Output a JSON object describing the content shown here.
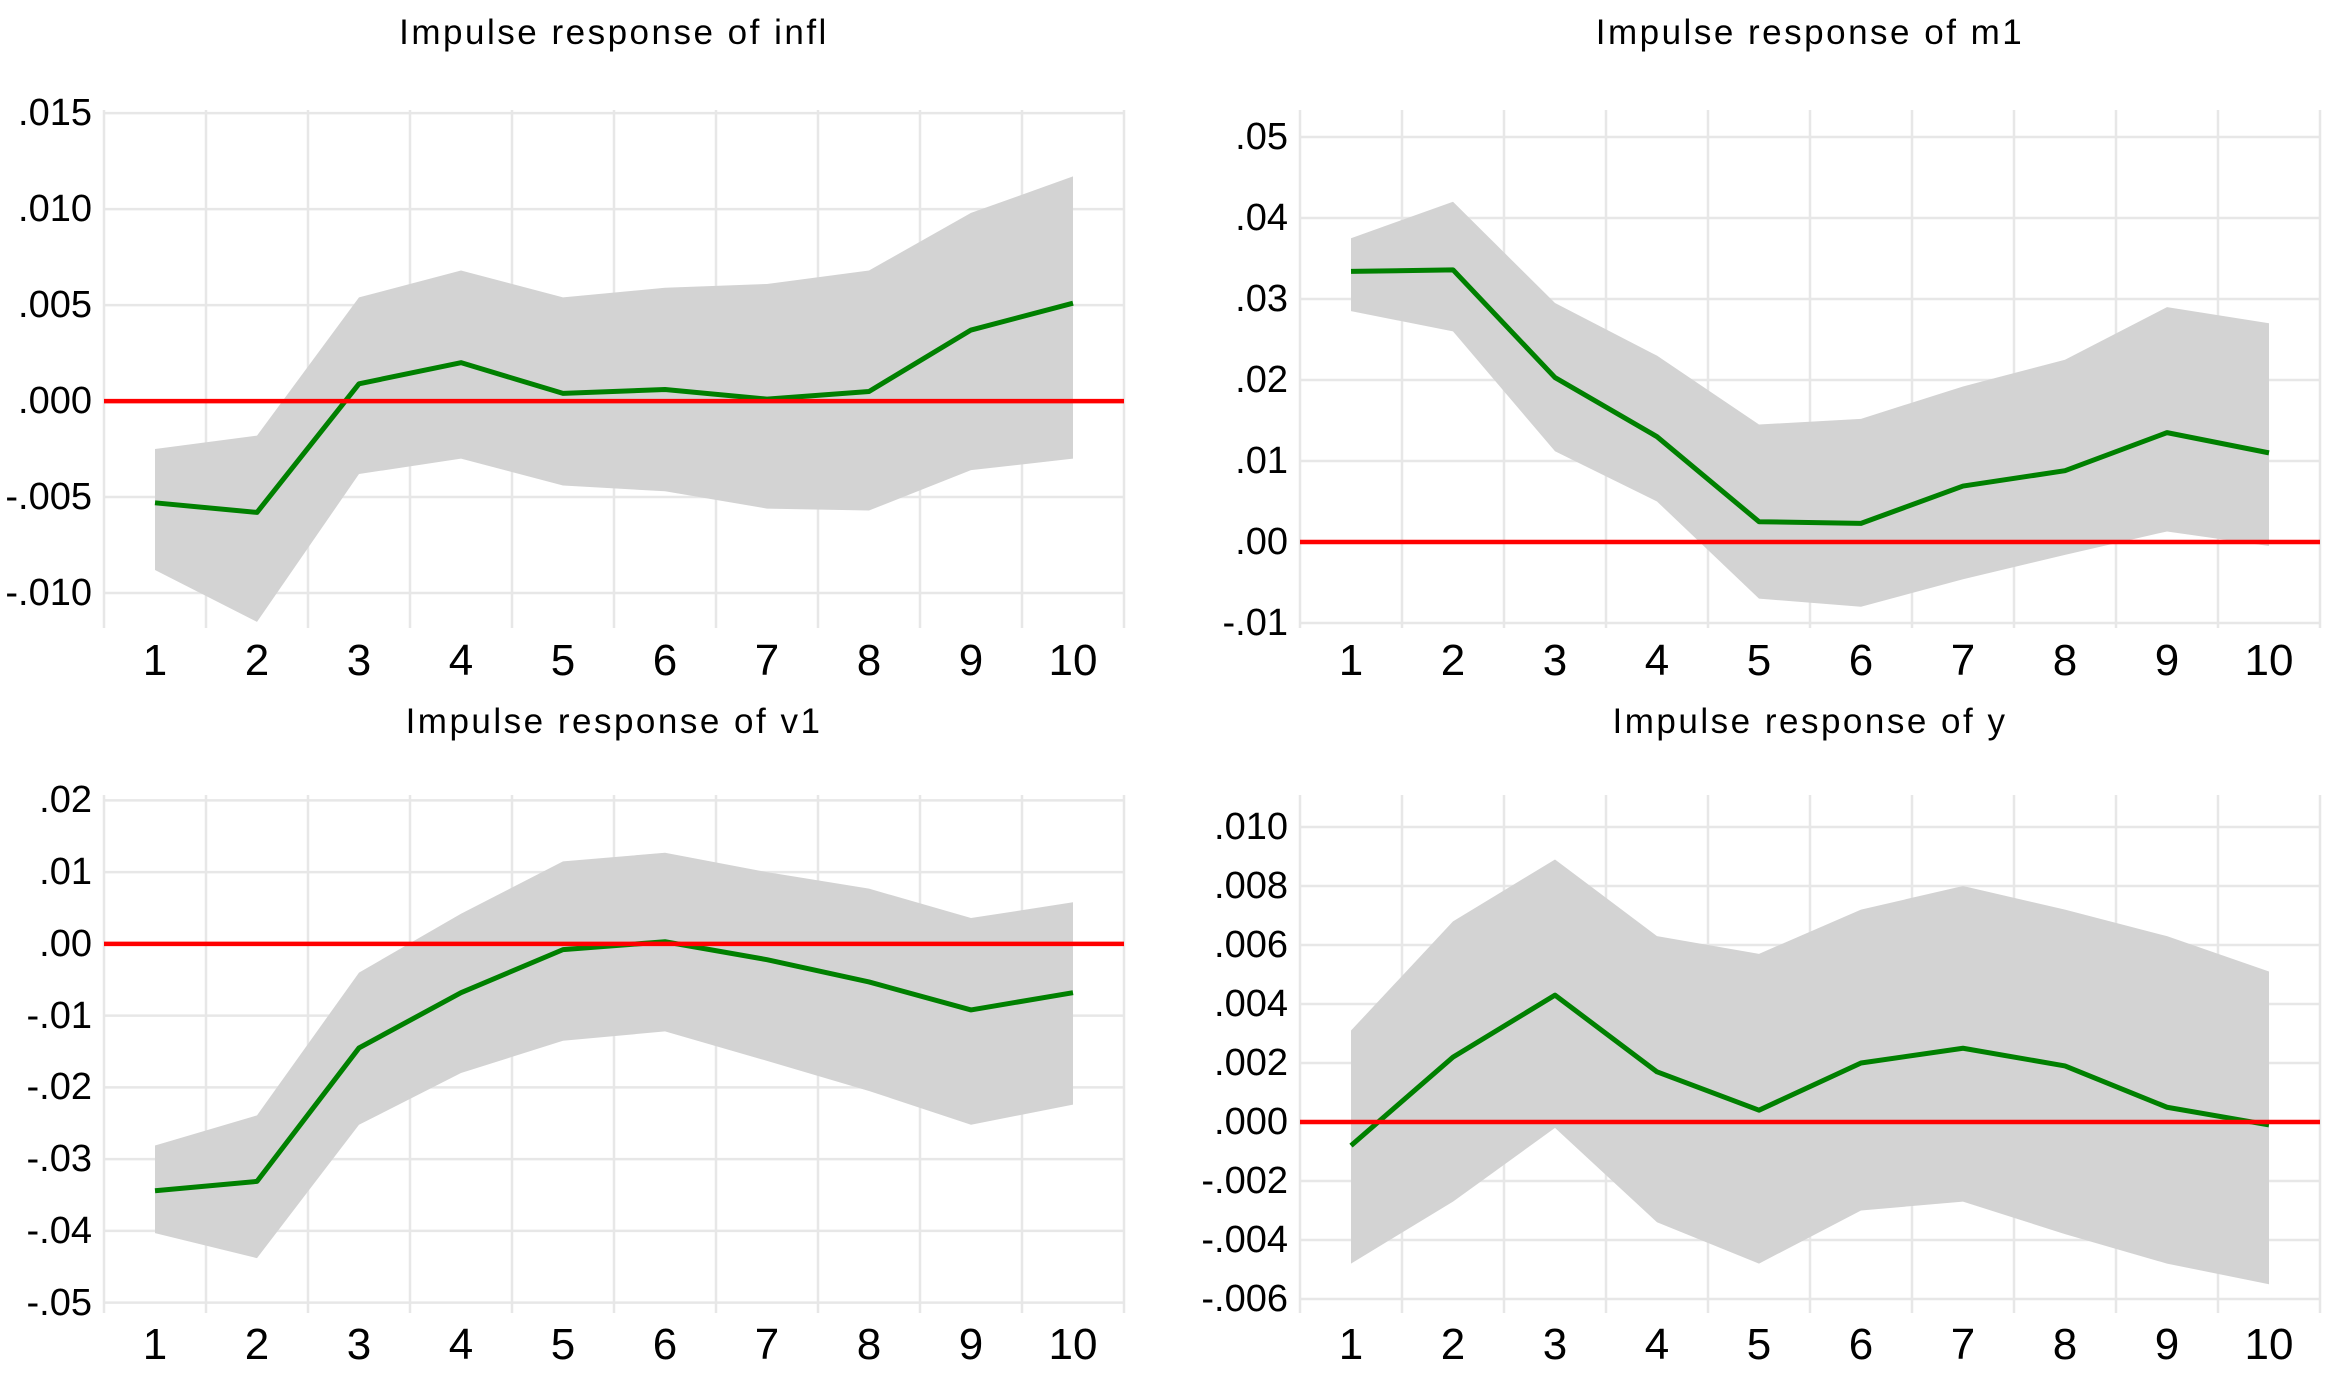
{
  "colors": {
    "irf_line": "#008000",
    "zero_line": "#ff0000",
    "ci_band": "#d3d3d3",
    "gridline": "#e7e7e7",
    "text": "#000000",
    "background": "#ffffff"
  },
  "chart_data": [
    {
      "type": "line",
      "title": "Impulse response of infl",
      "x": [
        1,
        2,
        3,
        4,
        5,
        6,
        7,
        8,
        9,
        10
      ],
      "xtick_labels": [
        "1",
        "2",
        "3",
        "4",
        "5",
        "6",
        "7",
        "8",
        "9",
        "10"
      ],
      "series": [
        {
          "name": "irf",
          "values": [
            -0.0053,
            -0.0058,
            0.0009,
            0.002,
            0.0004,
            0.0006,
            0.0001,
            0.0005,
            0.0037,
            0.0051
          ]
        },
        {
          "name": "ci_upper",
          "values": [
            -0.0025,
            -0.0018,
            0.0054,
            0.0068,
            0.0054,
            0.0059,
            0.0061,
            0.0068,
            0.0098,
            0.0117
          ]
        },
        {
          "name": "ci_lower",
          "values": [
            -0.0088,
            -0.0115,
            -0.0038,
            -0.003,
            -0.0044,
            -0.0047,
            -0.0056,
            -0.0057,
            -0.0036,
            -0.003
          ]
        }
      ],
      "band": {
        "upper": "ci_upper",
        "lower": "ci_lower"
      },
      "zero_line": 0,
      "ylim": [
        -0.01182,
        0.01516
      ],
      "yticks": [
        {
          "v": 0.015,
          "label": ".015"
        },
        {
          "v": 0.01,
          "label": ".010"
        },
        {
          "v": 0.005,
          "label": ".005"
        },
        {
          "v": 0.0,
          "label": ".000"
        },
        {
          "v": -0.005,
          "label": "-.005"
        },
        {
          "v": -0.01,
          "label": "-.010"
        }
      ],
      "grid": true,
      "legend": "none"
    },
    {
      "type": "line",
      "title": "Impulse response of m1",
      "x": [
        1,
        2,
        3,
        4,
        5,
        6,
        7,
        8,
        9,
        10
      ],
      "xtick_labels": [
        "1",
        "2",
        "3",
        "4",
        "5",
        "6",
        "7",
        "8",
        "9",
        "10"
      ],
      "series": [
        {
          "name": "irf",
          "values": [
            0.0334,
            0.0336,
            0.0203,
            0.013,
            0.0025,
            0.0023,
            0.0069,
            0.0088,
            0.0135,
            0.011
          ]
        },
        {
          "name": "ci_upper",
          "values": [
            0.0375,
            0.042,
            0.0295,
            0.023,
            0.0145,
            0.0152,
            0.0192,
            0.0225,
            0.029,
            0.027
          ]
        },
        {
          "name": "ci_lower",
          "values": [
            0.0285,
            0.026,
            0.0112,
            0.005,
            -0.007,
            -0.008,
            -0.0046,
            -0.0016,
            0.0013,
            -0.0005
          ]
        }
      ],
      "band": {
        "upper": "ci_upper",
        "lower": "ci_lower"
      },
      "zero_line": 0,
      "ylim": [
        -0.01062,
        0.05333
      ],
      "yticks": [
        {
          "v": 0.05,
          "label": ".05"
        },
        {
          "v": 0.04,
          "label": ".04"
        },
        {
          "v": 0.03,
          "label": ".03"
        },
        {
          "v": 0.02,
          "label": ".02"
        },
        {
          "v": 0.01,
          "label": ".01"
        },
        {
          "v": 0.0,
          "label": ".00"
        },
        {
          "v": -0.01,
          "label": "-.01"
        }
      ],
      "grid": true,
      "legend": "none"
    },
    {
      "type": "line",
      "title": "Impulse response of v1",
      "x": [
        1,
        2,
        3,
        4,
        5,
        6,
        7,
        8,
        9,
        10
      ],
      "xtick_labels": [
        "1",
        "2",
        "3",
        "4",
        "5",
        "6",
        "7",
        "8",
        "9",
        "10"
      ],
      "series": [
        {
          "name": "irf",
          "values": [
            -0.0344,
            -0.0331,
            -0.0145,
            -0.0068,
            -0.0008,
            0.0003,
            -0.0022,
            -0.0053,
            -0.0092,
            -0.0068
          ]
        },
        {
          "name": "ci_upper",
          "values": [
            -0.0281,
            -0.0239,
            -0.004,
            0.0042,
            0.0115,
            0.0127,
            0.01,
            0.0077,
            0.0036,
            0.0058
          ]
        },
        {
          "name": "ci_lower",
          "values": [
            -0.0403,
            -0.0438,
            -0.0252,
            -0.018,
            -0.0135,
            -0.0122,
            -0.0163,
            -0.0205,
            -0.0252,
            -0.0224
          ]
        }
      ],
      "band": {
        "upper": "ci_upper",
        "lower": "ci_lower"
      },
      "zero_line": 0,
      "ylim": [
        -0.05144,
        0.02075
      ],
      "yticks": [
        {
          "v": 0.02,
          "label": ".02"
        },
        {
          "v": 0.01,
          "label": ".01"
        },
        {
          "v": 0.0,
          "label": ".00"
        },
        {
          "v": -0.01,
          "label": "-.01"
        },
        {
          "v": -0.02,
          "label": "-.02"
        },
        {
          "v": -0.03,
          "label": "-.03"
        },
        {
          "v": -0.04,
          "label": "-.04"
        },
        {
          "v": -0.05,
          "label": "-.05"
        }
      ],
      "grid": true,
      "legend": "none"
    },
    {
      "type": "line",
      "title": "Impulse response of y",
      "x": [
        1,
        2,
        3,
        4,
        5,
        6,
        7,
        8,
        9,
        10
      ],
      "xtick_labels": [
        "1",
        "2",
        "3",
        "4",
        "5",
        "6",
        "7",
        "8",
        "9",
        "10"
      ],
      "series": [
        {
          "name": "irf",
          "values": [
            -0.0008,
            0.0022,
            0.0043,
            0.0017,
            0.0004,
            0.002,
            0.0025,
            0.0019,
            0.0005,
            -0.0001
          ]
        },
        {
          "name": "ci_upper",
          "values": [
            0.0031,
            0.0068,
            0.0089,
            0.0063,
            0.0057,
            0.0072,
            0.008,
            0.0072,
            0.0063,
            0.0051
          ]
        },
        {
          "name": "ci_lower",
          "values": [
            -0.0048,
            -0.0027,
            -0.0002,
            -0.0034,
            -0.0048,
            -0.003,
            -0.0027,
            -0.0038,
            -0.0048,
            -0.0055
          ]
        }
      ],
      "band": {
        "upper": "ci_upper",
        "lower": "ci_lower"
      },
      "zero_line": 0,
      "ylim": [
        -0.006475,
        0.011085
      ],
      "yticks": [
        {
          "v": 0.01,
          "label": ".010"
        },
        {
          "v": 0.008,
          "label": ".008"
        },
        {
          "v": 0.006,
          "label": ".006"
        },
        {
          "v": 0.004,
          "label": ".004"
        },
        {
          "v": 0.002,
          "label": ".002"
        },
        {
          "v": 0.0,
          "label": ".000"
        },
        {
          "v": -0.002,
          "label": "-.002"
        },
        {
          "v": -0.004,
          "label": "-.004"
        },
        {
          "v": -0.006,
          "label": "-.006"
        }
      ],
      "grid": true,
      "legend": "none"
    }
  ]
}
